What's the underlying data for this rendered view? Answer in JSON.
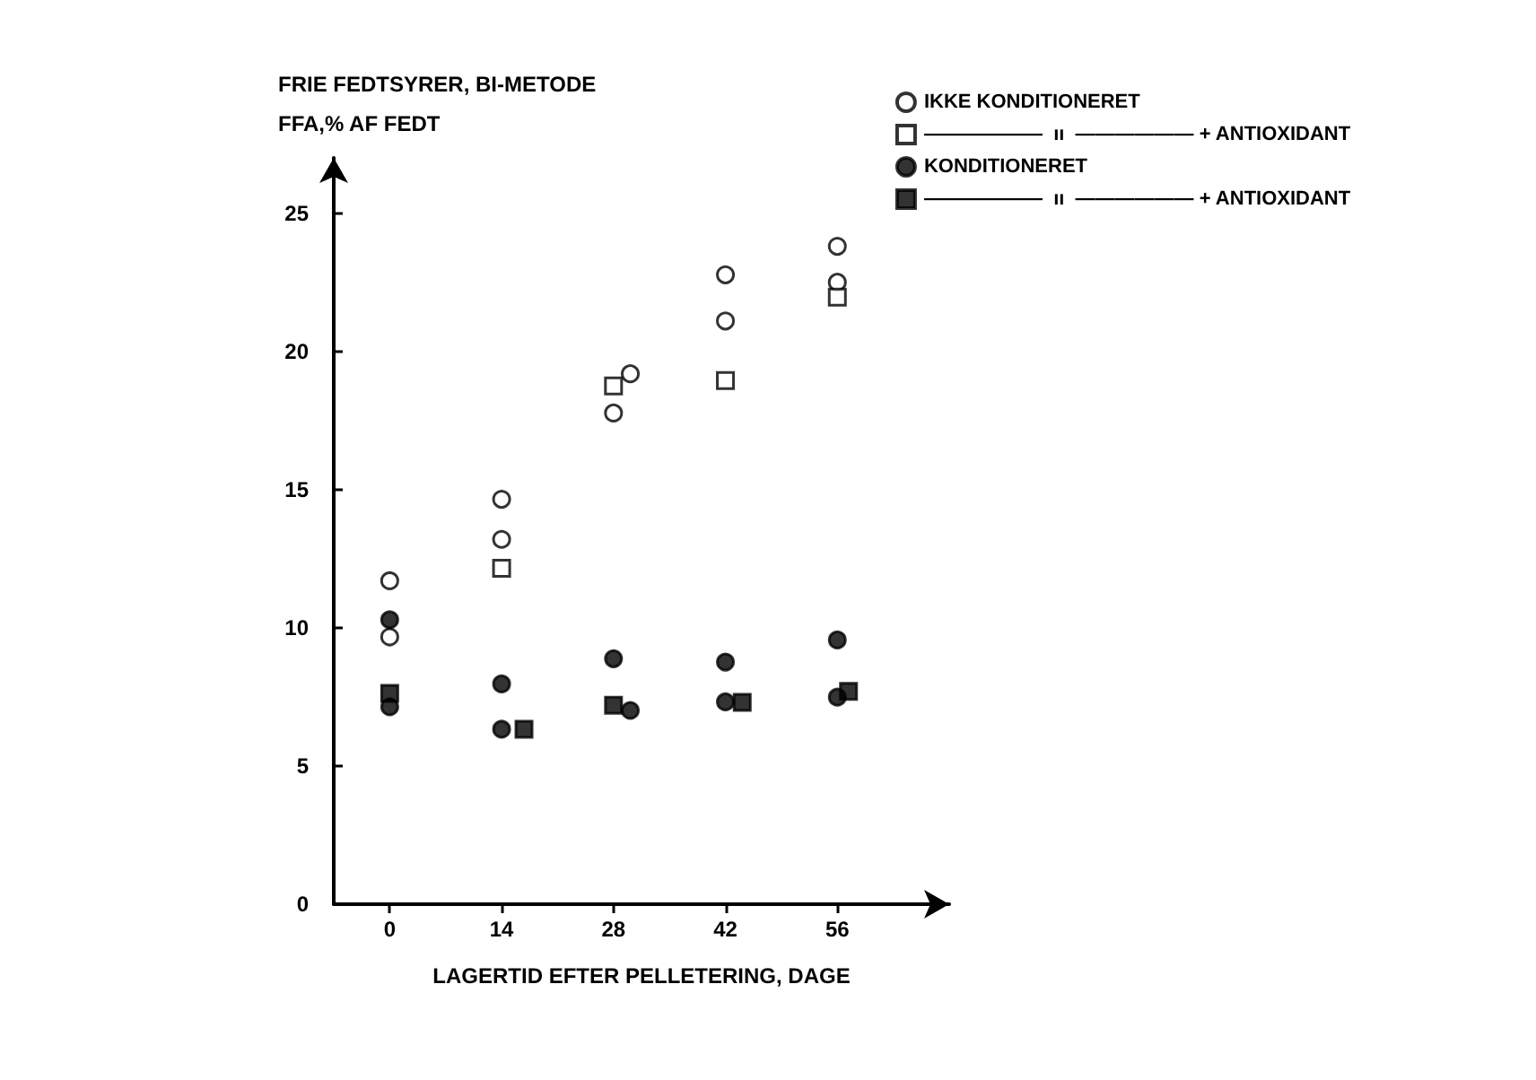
{
  "chart_data": {
    "type": "scatter",
    "title": "FRIE FEDTSYRER, BI-METODE",
    "ylabel": "FFA,% AF FEDT",
    "xlabel": "LAGERTID EFTER PELLETERING, DAGE",
    "xlim": [
      -7,
      70
    ],
    "xticks": [
      0,
      14,
      28,
      42,
      56
    ],
    "ylim": [
      0,
      27
    ],
    "yticks": [
      0,
      5,
      10,
      15,
      20,
      25
    ],
    "grid": false,
    "legend": "top right",
    "series": [
      {
        "name": "IKKE KONDITIONERET",
        "color": "#ffffff",
        "marker": "circle",
        "x": [
          0,
          0,
          14,
          14,
          28,
          30.1,
          42,
          42,
          56,
          56
        ],
        "values": [
          11.7,
          9.67,
          14.65,
          13.2,
          17.77,
          19.19,
          22.77,
          21.1,
          23.8,
          22.5
        ]
      },
      {
        "name": "——————  ıı  —————— + ANTIOXIDANT",
        "color": "#ffffff",
        "marker": "square",
        "x": [
          14,
          28,
          42,
          56
        ],
        "values": [
          12.15,
          18.75,
          18.94,
          21.96
        ]
      },
      {
        "name": "KONDITIONERET",
        "color": "#000000",
        "marker": "circle",
        "x": [
          0,
          0,
          14,
          14,
          28,
          30.1,
          42,
          42,
          56,
          56
        ],
        "values": [
          10.29,
          7.14,
          7.97,
          6.33,
          8.88,
          7.01,
          8.76,
          7.32,
          9.56,
          7.49
        ]
      },
      {
        "name": "——————  ıı  —————— + ANTIOXIDANT",
        "color": "#000000",
        "marker": "square",
        "x": [
          0,
          16.8,
          28,
          44.1,
          57.4
        ],
        "values": [
          7.63,
          6.33,
          7.2,
          7.3,
          7.7
        ]
      }
    ]
  }
}
